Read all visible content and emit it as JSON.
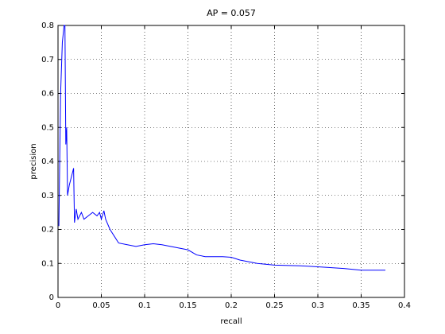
{
  "chart_data": {
    "type": "line",
    "title": "AP = 0.057",
    "x_label": "recall",
    "y_label": "precision",
    "x": [
      0.001,
      0.003,
      0.005,
      0.007,
      0.008,
      0.009,
      0.01,
      0.011,
      0.013,
      0.015,
      0.017,
      0.018,
      0.019,
      0.021,
      0.023,
      0.027,
      0.03,
      0.035,
      0.04,
      0.045,
      0.048,
      0.05,
      0.053,
      0.055,
      0.06,
      0.065,
      0.07,
      0.08,
      0.09,
      0.1,
      0.11,
      0.12,
      0.13,
      0.14,
      0.15,
      0.16,
      0.17,
      0.18,
      0.19,
      0.2,
      0.21,
      0.22,
      0.23,
      0.25,
      0.28,
      0.3,
      0.33,
      0.35,
      0.378
    ],
    "series": [
      {
        "color": "#0000ff",
        "values": [
          0.21,
          0.6,
          0.75,
          0.8,
          0.8,
          0.45,
          0.5,
          0.3,
          0.33,
          0.35,
          0.37,
          0.38,
          0.22,
          0.26,
          0.23,
          0.25,
          0.23,
          0.24,
          0.25,
          0.24,
          0.25,
          0.23,
          0.255,
          0.23,
          0.2,
          0.18,
          0.16,
          0.155,
          0.15,
          0.155,
          0.158,
          0.155,
          0.15,
          0.145,
          0.14,
          0.125,
          0.12,
          0.12,
          0.12,
          0.118,
          0.11,
          0.105,
          0.1,
          0.095,
          0.093,
          0.09,
          0.085,
          0.08,
          0.08
        ]
      }
    ],
    "xlim": [
      0,
      0.4
    ],
    "xticks": [
      0,
      0.05,
      0.1,
      0.15,
      0.2,
      0.25,
      0.3,
      0.35,
      0.4
    ],
    "ylim": [
      0,
      0.8
    ],
    "yticks": [
      0,
      0.1,
      0.2,
      0.3,
      0.4,
      0.5,
      0.6,
      0.7,
      0.8
    ],
    "grid": true
  }
}
